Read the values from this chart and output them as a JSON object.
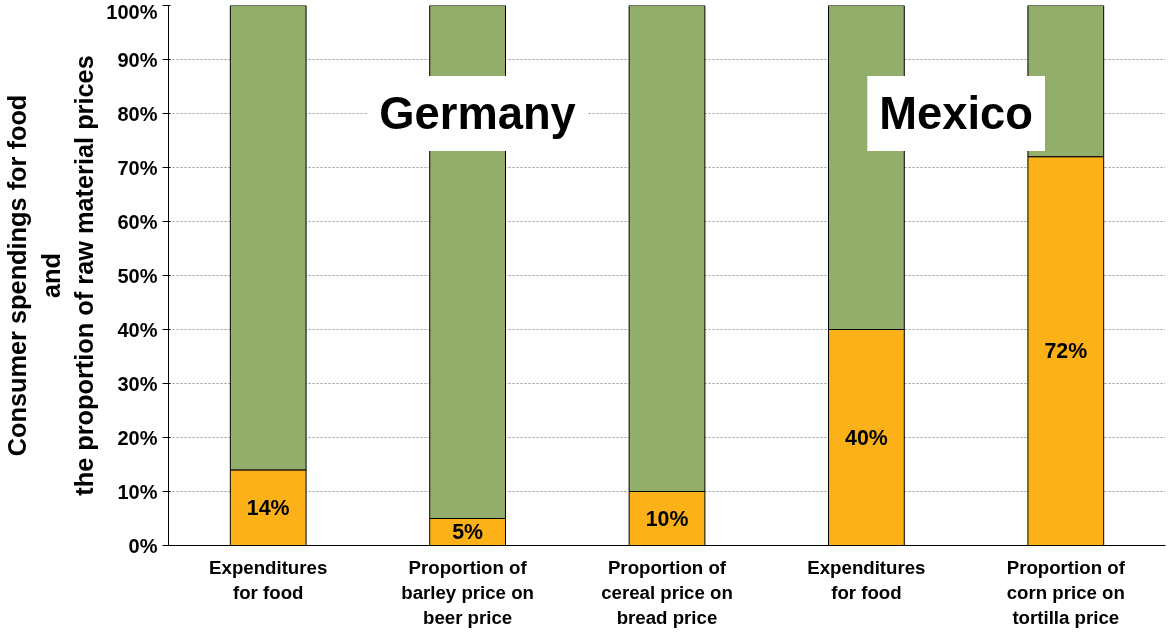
{
  "chart_data": {
    "type": "bar",
    "stacked": true,
    "ylabel": "Consumer spendings for food\nand\nthe proportion of raw material prices",
    "categories": [
      "Expenditures\nfor food",
      "Proportion of\nbarley price on\nbeer price",
      "Proportion of\ncereal price on\nbread price",
      "Expenditures\nfor food",
      "Proportion of\ncorn price on\ntortilla price"
    ],
    "series": [
      {
        "color": "#fbb117",
        "values": [
          14,
          5,
          10,
          40,
          72
        ],
        "value_labels": [
          "14%",
          "5%",
          "10%",
          "40%",
          "72%"
        ]
      },
      {
        "color": "#93ad6b",
        "values": [
          86,
          95,
          90,
          60,
          28
        ]
      }
    ],
    "ylim": [
      0,
      100
    ],
    "yticks": [
      {
        "value": 0,
        "label": "0%"
      },
      {
        "value": 10,
        "label": "10%"
      },
      {
        "value": 20,
        "label": "20%"
      },
      {
        "value": 30,
        "label": "30%"
      },
      {
        "value": 40,
        "label": "40%"
      },
      {
        "value": 50,
        "label": "50%"
      },
      {
        "value": 60,
        "label": "60%"
      },
      {
        "value": 70,
        "label": "70%"
      },
      {
        "value": 80,
        "label": "80%"
      },
      {
        "value": 90,
        "label": "90%"
      },
      {
        "value": 100,
        "label": "100%"
      }
    ],
    "grid": "y",
    "annotations": [
      "Germany",
      "Mexico"
    ]
  }
}
